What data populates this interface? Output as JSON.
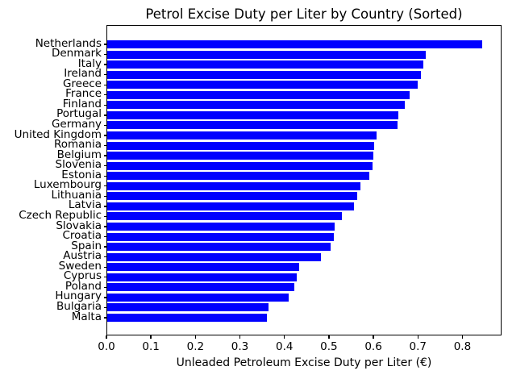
{
  "chart_data": {
    "type": "bar",
    "orientation": "horizontal",
    "title": "Petrol Excise Duty per Liter by Country (Sorted)",
    "xlabel": "Unleaded Petroleum Excise Duty per Liter (€)",
    "ylabel": "",
    "categories": [
      "Netherlands",
      "Denmark",
      "Italy",
      "Ireland",
      "Greece",
      "France",
      "Finland",
      "Portugal",
      "Germany",
      "United Kingdom",
      "Romania",
      "Belgium",
      "Slovenia",
      "Estonia",
      "Luxembourg",
      "Lithuania",
      "Latvia",
      "Czech Republic",
      "Slovakia",
      "Croatia",
      "Spain",
      "Austria",
      "Sweden",
      "Cyprus",
      "Poland",
      "Hungary",
      "Bulgaria",
      "Malta"
    ],
    "values": [
      0.843,
      0.715,
      0.711,
      0.705,
      0.698,
      0.68,
      0.669,
      0.654,
      0.652,
      0.605,
      0.6,
      0.598,
      0.596,
      0.588,
      0.569,
      0.562,
      0.554,
      0.527,
      0.511,
      0.51,
      0.502,
      0.48,
      0.432,
      0.426,
      0.421,
      0.407,
      0.362,
      0.358
    ],
    "xlim": [
      0,
      0.888
    ],
    "xticks": [
      0.0,
      0.1,
      0.2,
      0.3,
      0.4,
      0.5,
      0.6,
      0.7,
      0.8
    ],
    "xtick_labels": [
      "0.0",
      "0.1",
      "0.2",
      "0.3",
      "0.4",
      "0.5",
      "0.6",
      "0.7",
      "0.8"
    ],
    "bar_color": "#0000ff",
    "axis_color": "#000000",
    "background_color": "#ffffff",
    "grid": false,
    "legend": null,
    "sort_order": "descending"
  }
}
